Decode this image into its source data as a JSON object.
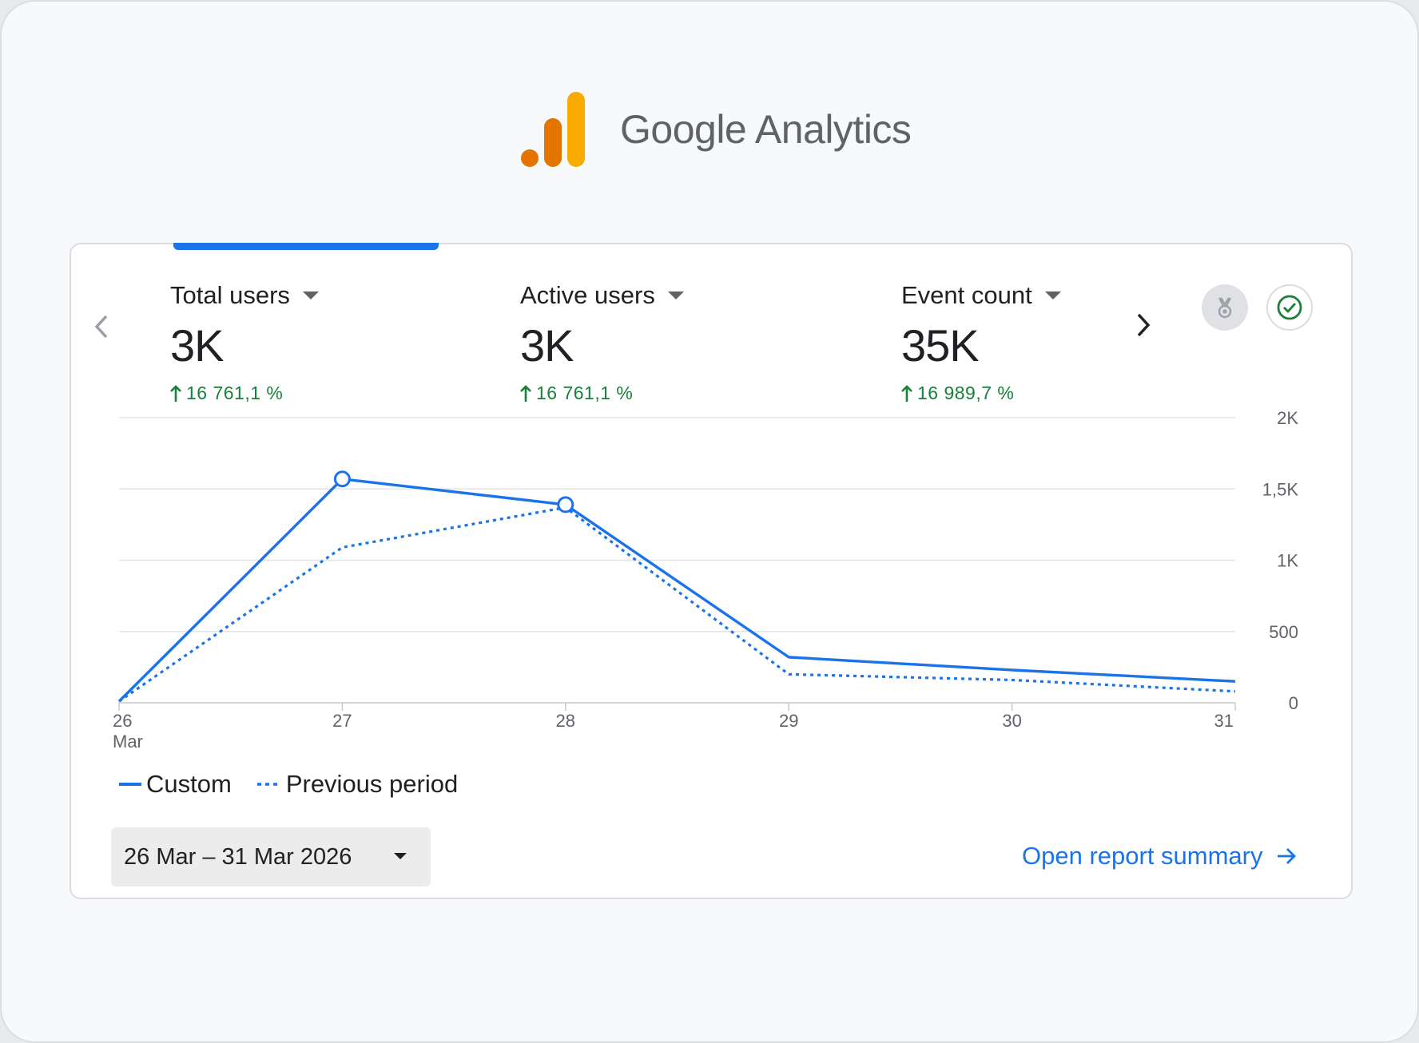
{
  "brand": {
    "name": "Google Analytics",
    "logo_colors": [
      "#e37400",
      "#f9ab00"
    ]
  },
  "nav": {
    "prev_icon": "chevron-left-icon",
    "next_icon": "chevron-right-icon"
  },
  "metrics": [
    {
      "label": "Total users",
      "value": "3K",
      "change": "16 761,1 %"
    },
    {
      "label": "Active users",
      "value": "3K",
      "change": "16 761,1 %"
    },
    {
      "label": "Event count",
      "value": "35K",
      "change": "16 989,7 %"
    }
  ],
  "actions": {
    "medal_icon": "medal-icon",
    "check_icon": "check-circle-icon"
  },
  "colors": {
    "accent": "#1a73e8",
    "positive": "#188038",
    "text": "#202124",
    "muted": "#5f6368"
  },
  "chart_data": {
    "type": "line",
    "x": [
      "26",
      "27",
      "28",
      "29",
      "30",
      "31"
    ],
    "x_sublabel": "Mar",
    "yticks": [
      "0",
      "500",
      "1K",
      "1,5K",
      "2K"
    ],
    "ylim": [
      0,
      2000
    ],
    "grid": true,
    "legend_position": "bottom-left",
    "series": [
      {
        "name": "Custom",
        "style": "solid",
        "values": [
          10,
          1570,
          1390,
          320,
          230,
          150
        ],
        "markers": [
          false,
          true,
          true,
          false,
          false,
          false
        ]
      },
      {
        "name": "Previous period",
        "style": "dotted",
        "values": [
          10,
          1090,
          1370,
          200,
          160,
          80
        ]
      }
    ]
  },
  "date_range": {
    "label": "26 Mar – 31 Mar 2026"
  },
  "report_link": {
    "label": "Open report summary"
  }
}
